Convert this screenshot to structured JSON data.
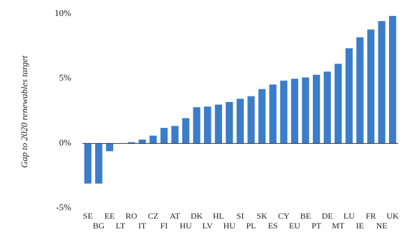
{
  "chart_data": {
    "type": "bar",
    "y_label": "Gap to 2020 renewables target",
    "categories": [
      "SE",
      "BG",
      "EE",
      "LT",
      "RO",
      "IT",
      "CZ",
      "FI",
      "AT",
      "HU",
      "DK",
      "LV",
      "HL",
      "HU",
      "SI",
      "PL",
      "SK",
      "ES",
      "CY",
      "EU",
      "BE",
      "PT",
      "DE",
      "MT",
      "LU",
      "IE",
      "FR",
      "NE",
      "UK"
    ],
    "values": [
      -3.1,
      -3.1,
      -0.6,
      0,
      0.1,
      0.3,
      0.6,
      1.2,
      1.35,
      1.95,
      2.8,
      2.85,
      3.0,
      3.2,
      3.45,
      3.65,
      4.2,
      4.55,
      4.85,
      5.0,
      5.1,
      5.3,
      5.55,
      6.15,
      7.35,
      8.2,
      8.8,
      9.45,
      9.85
    ],
    "color": "#3b7dc8",
    "ylim": [
      -5,
      10
    ],
    "yticks": [
      {
        "value": -5,
        "label": "-5%"
      },
      {
        "value": 0,
        "label": "0%"
      },
      {
        "value": 5,
        "label": "5%"
      },
      {
        "value": 10,
        "label": "10%"
      }
    ],
    "grid": false
  }
}
